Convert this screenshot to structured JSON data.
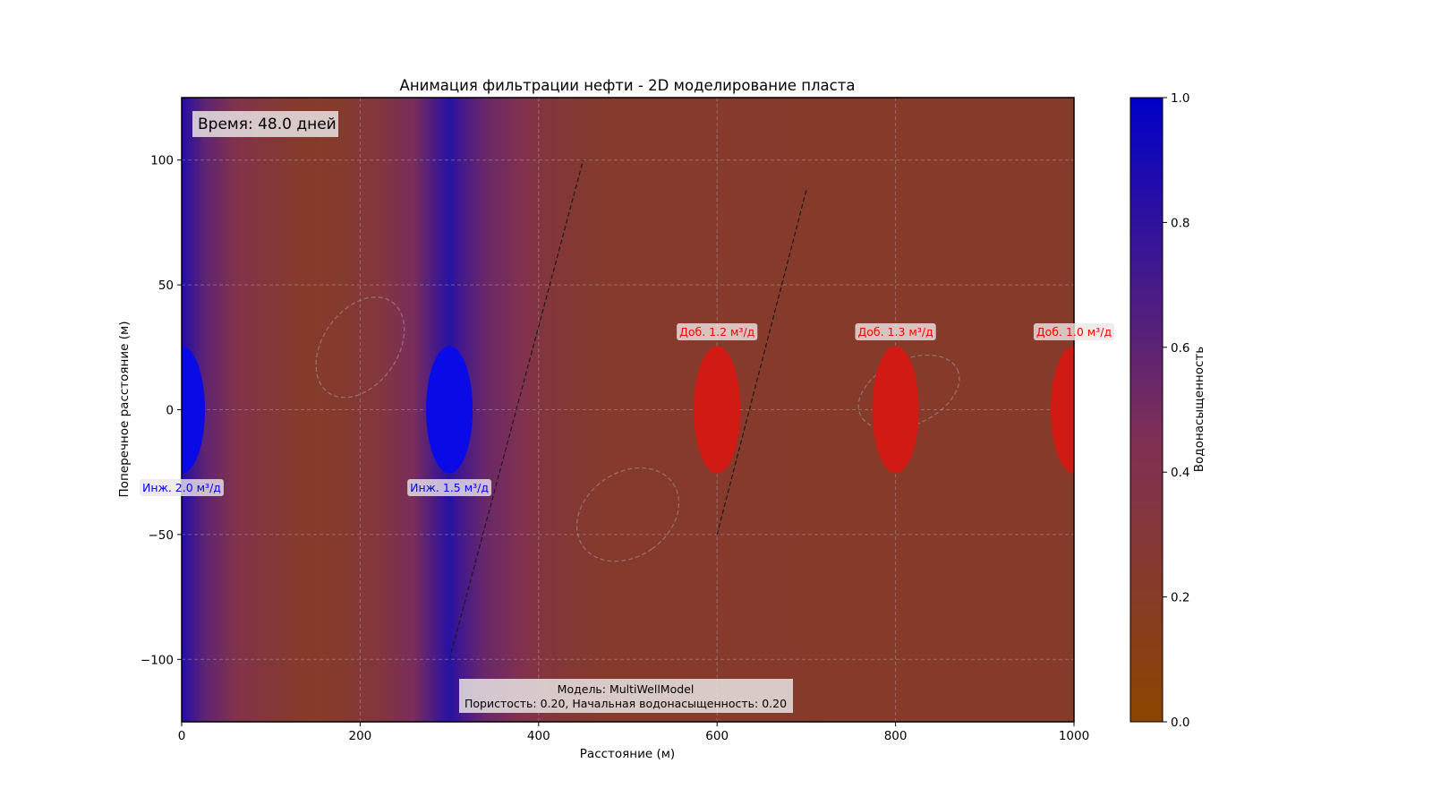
{
  "chart_data": {
    "type": "heatmap",
    "title": "Анимация фильтрации нефти - 2D моделирование пласта",
    "xlabel": "Расстояние (м)",
    "ylabel": "Поперечное расстояние (м)",
    "xlim": [
      0,
      1000
    ],
    "ylim": [
      -125,
      125
    ],
    "xticks": [
      0,
      200,
      400,
      600,
      800,
      1000
    ],
    "yticks": [
      -100,
      -50,
      0,
      50,
      100
    ],
    "grid": true,
    "colorbar": {
      "label": "Водонасыщенность",
      "range": [
        0.0,
        1.0
      ],
      "ticks": [
        0.0,
        0.2,
        0.4,
        0.6,
        0.8,
        1.0
      ],
      "low_color": "#8b4500",
      "high_color": "#0000c8"
    },
    "field": {
      "description_profile_x": [
        0,
        25,
        60,
        100,
        130,
        150,
        175,
        220,
        260,
        285,
        300,
        315,
        340,
        380,
        410,
        440,
        470,
        500,
        1000
      ],
      "description_profile_value": [
        0.85,
        0.6,
        0.4,
        0.3,
        0.24,
        0.22,
        0.24,
        0.32,
        0.48,
        0.7,
        0.82,
        0.7,
        0.55,
        0.42,
        0.32,
        0.27,
        0.24,
        0.23,
        0.22
      ]
    },
    "time_label": "Время: 48.0 дней",
    "wells": [
      {
        "type": "injector",
        "x": 0,
        "y": 0,
        "label": "Инж. 2.0 м³/д",
        "color": "#0000ff"
      },
      {
        "type": "injector",
        "x": 300,
        "y": 0,
        "label": "Инж. 1.5 м³/д",
        "color": "#0000ff"
      },
      {
        "type": "producer",
        "x": 600,
        "y": 0,
        "label": "Доб. 1.2 м³/д",
        "color": "#ff0000"
      },
      {
        "type": "producer",
        "x": 800,
        "y": 0,
        "label": "Доб. 1.3 м³/д",
        "color": "#ff0000"
      },
      {
        "type": "producer",
        "x": 1000,
        "y": 0,
        "label": "Доб. 1.0 м³/д",
        "color": "#ff0000"
      }
    ],
    "faults": [
      {
        "x1": 300,
        "y1": -100,
        "x2": 450,
        "y2": 100
      },
      {
        "x1": 600,
        "y1": -50,
        "x2": 700,
        "y2": 88
      }
    ],
    "vertical_line_x": 300,
    "heterogeneities": [
      {
        "cx": 200,
        "cy": 25,
        "rx": 62,
        "ry": 15,
        "angle": 55
      },
      {
        "cx": 500,
        "cy": -42,
        "rx": 47,
        "ry": 22,
        "angle": -55
      },
      {
        "cx": 815,
        "cy": 7,
        "rx": 60,
        "ry": 13,
        "angle": 25
      }
    ],
    "info_box": {
      "line1": "Модель: MultiWellModel",
      "line2": "Пористость: 0.20, Начальная водонасыщенность: 0.20"
    }
  }
}
